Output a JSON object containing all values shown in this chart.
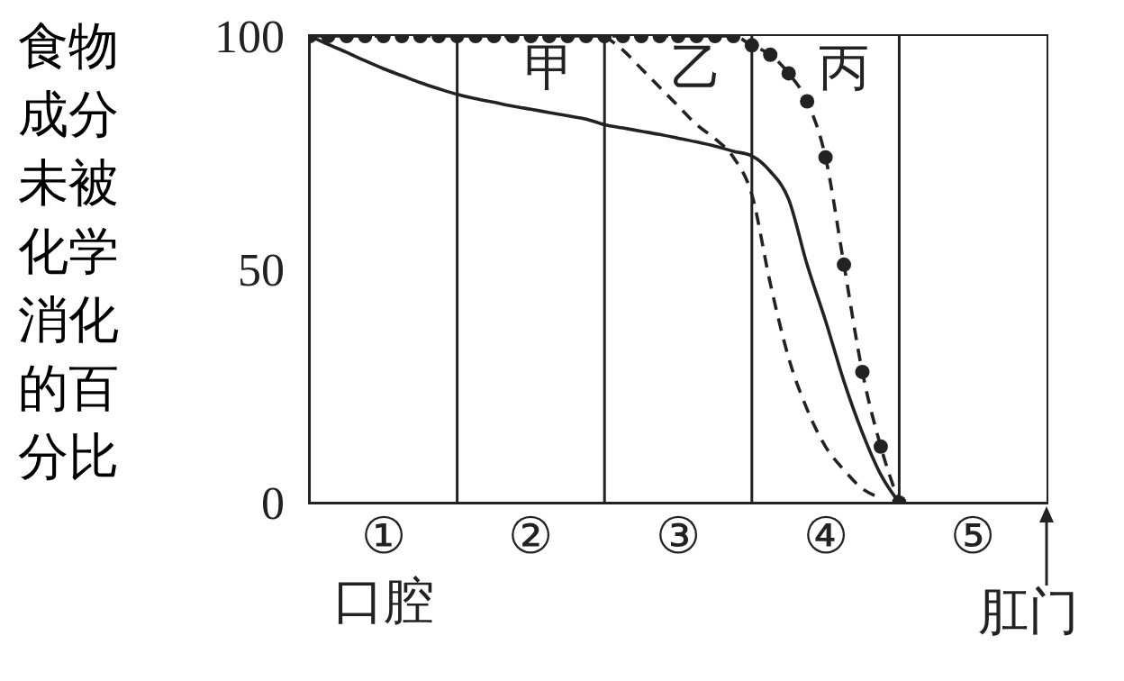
{
  "chart_data": {
    "type": "line",
    "ylabel": "食物成分未被化学消化的百分比",
    "categories": [
      null,
      null,
      null,
      null,
      "①",
      null,
      null,
      null,
      null,
      null,
      null,
      null,
      "②",
      null,
      null,
      null,
      null,
      null,
      null,
      null,
      "③",
      null,
      null,
      null,
      null,
      null,
      null,
      null,
      "④",
      null,
      null,
      null,
      null,
      null,
      null,
      null,
      "⑤",
      null,
      null,
      null,
      null
    ],
    "ylim": [
      0,
      100
    ],
    "yticks": [
      0,
      50,
      100
    ],
    "series": [
      {
        "name": "甲",
        "color": "#222222",
        "line_style": "solid",
        "values": [
          100,
          98.2,
          96.5,
          94.7,
          93,
          91.5,
          90,
          88.7,
          87.5,
          86.6,
          85.8,
          85,
          84.3,
          83.6,
          82.9,
          82.2,
          81,
          80.3,
          79.6,
          78.9,
          78.1,
          77.3,
          76.4,
          75.3,
          74.3,
          71,
          65,
          51,
          39,
          26,
          15,
          6,
          0,
          null,
          null,
          null,
          null,
          null,
          null,
          null,
          null
        ]
      },
      {
        "name": "乙",
        "color": "#222222",
        "line_style": "dashed",
        "values": [
          null,
          null,
          null,
          null,
          null,
          null,
          null,
          null,
          null,
          null,
          null,
          null,
          null,
          null,
          null,
          null,
          100,
          97,
          93,
          89,
          85,
          81,
          78,
          74,
          66,
          47,
          31,
          20,
          12,
          7,
          3,
          1,
          null,
          null,
          null,
          null,
          null,
          null,
          null,
          null,
          null
        ]
      },
      {
        "name": "丙",
        "color": "#222222",
        "line_style": "dashed",
        "marker": "circle",
        "values": [
          100,
          100,
          100,
          100,
          100,
          100,
          100,
          100,
          100,
          100,
          100,
          100,
          100,
          100,
          100,
          100,
          100,
          100,
          100,
          100,
          100,
          100,
          100,
          100,
          98,
          96,
          92,
          86,
          74,
          51,
          28,
          12,
          0,
          null,
          null,
          null,
          null,
          null,
          null,
          null,
          null
        ]
      }
    ],
    "annotations": [
      "口腔",
      "肛门"
    ]
  }
}
